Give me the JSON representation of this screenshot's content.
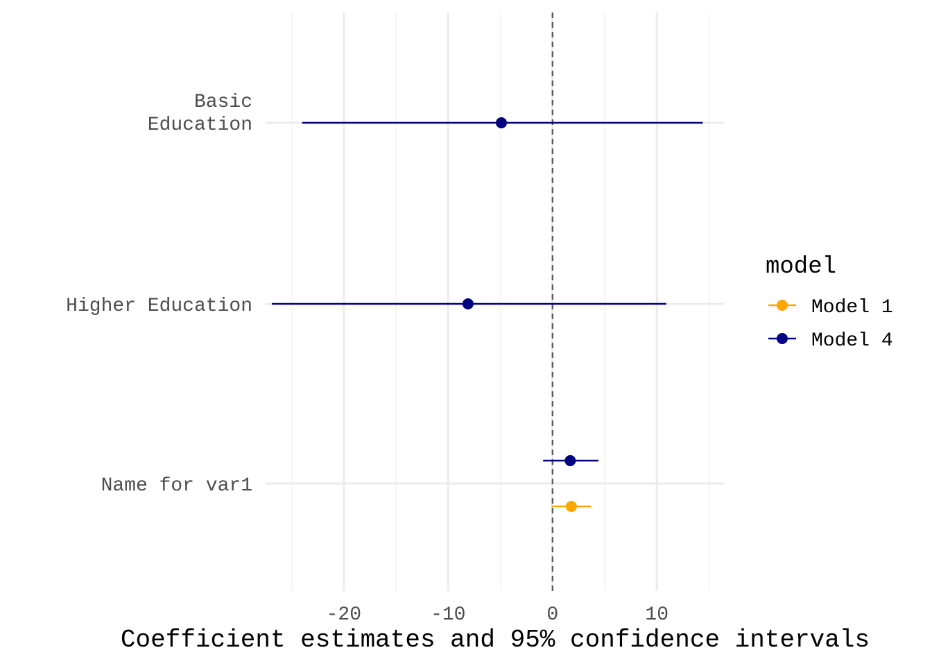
{
  "chart_data": {
    "type": "scatter",
    "subtype": "coefficient-plot",
    "xlabel": "Coefficient estimates and 95% confidence intervals",
    "ylabel": "",
    "xlim": [
      -27.5,
      16.5
    ],
    "xticks": [
      -20,
      -10,
      0,
      10
    ],
    "xtick_labels": [
      "-20",
      "-10",
      "0",
      "10"
    ],
    "reference_line": 0,
    "categories": [
      {
        "key": "basic",
        "label_lines": [
          "Basic",
          "Education"
        ]
      },
      {
        "key": "higher",
        "label_lines": [
          "Higher Education"
        ]
      },
      {
        "key": "var1",
        "label_lines": [
          "Name for var1"
        ]
      }
    ],
    "series": [
      {
        "name": "Model 1",
        "color": "#FFA500",
        "points": [
          {
            "category": "var1",
            "estimate": 1.8,
            "ci_low": -0.1,
            "ci_high": 3.7
          }
        ]
      },
      {
        "name": "Model 4",
        "color": "#000080",
        "points": [
          {
            "category": "basic",
            "estimate": -4.9,
            "ci_low": -24.0,
            "ci_high": 14.4
          },
          {
            "category": "higher",
            "estimate": -8.1,
            "ci_low": -26.9,
            "ci_high": 10.9
          },
          {
            "category": "var1",
            "estimate": 1.7,
            "ci_low": -0.9,
            "ci_high": 4.4
          }
        ]
      }
    ],
    "legend": {
      "title": "model",
      "position": "right"
    },
    "grid": true
  }
}
